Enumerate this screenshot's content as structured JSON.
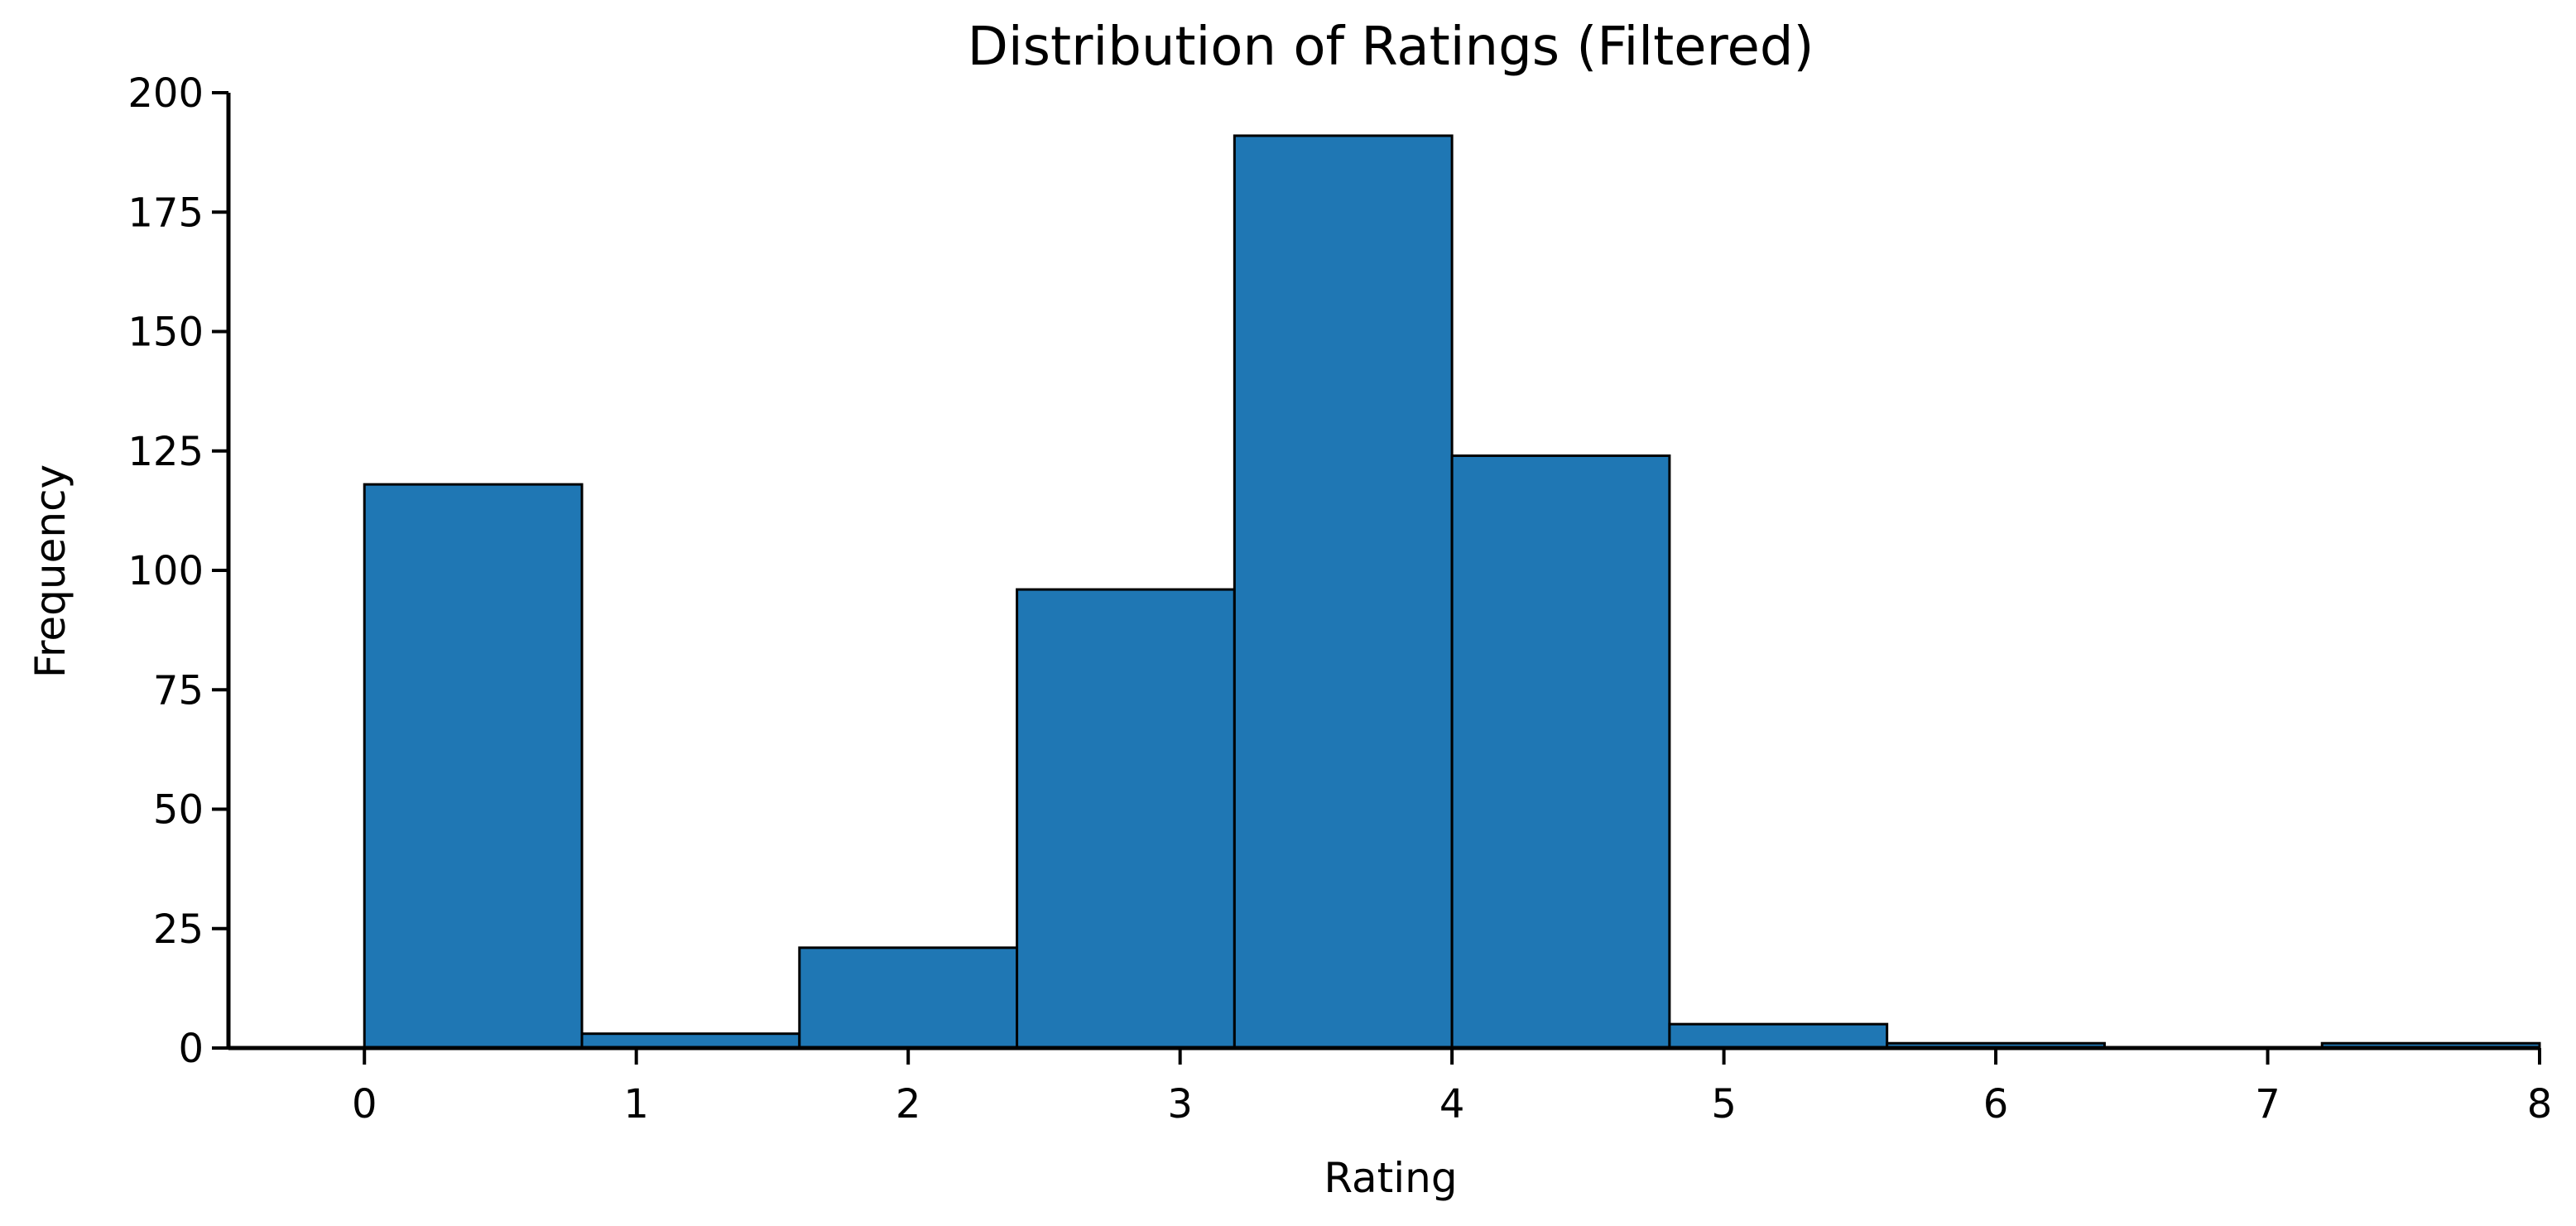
{
  "chart_data": {
    "type": "bar",
    "subtype": "histogram",
    "title": "Distribution of Ratings (Filtered)",
    "xlabel": "Rating",
    "ylabel": "Frequency",
    "xlim": [
      -0.5,
      8
    ],
    "ylim": [
      0,
      200
    ],
    "xticks": [
      0,
      1,
      2,
      3,
      4,
      5,
      6,
      7,
      8
    ],
    "yticks": [
      0,
      25,
      50,
      75,
      100,
      125,
      150,
      175,
      200
    ],
    "bins": [
      {
        "start": 0.0,
        "end": 0.8,
        "value": 118
      },
      {
        "start": 0.8,
        "end": 1.6,
        "value": 3
      },
      {
        "start": 1.6,
        "end": 2.4,
        "value": 21
      },
      {
        "start": 2.4,
        "end": 3.2,
        "value": 96
      },
      {
        "start": 3.2,
        "end": 4.0,
        "value": 191
      },
      {
        "start": 4.0,
        "end": 4.8,
        "value": 124
      },
      {
        "start": 4.8,
        "end": 5.6,
        "value": 5
      },
      {
        "start": 5.6,
        "end": 6.4,
        "value": 1
      },
      {
        "start": 6.4,
        "end": 7.2,
        "value": 0
      },
      {
        "start": 7.2,
        "end": 8.0,
        "value": 1
      }
    ],
    "bar_color": "#1f77b4",
    "edge_color": "#000000",
    "grid": false,
    "legend": "none"
  }
}
